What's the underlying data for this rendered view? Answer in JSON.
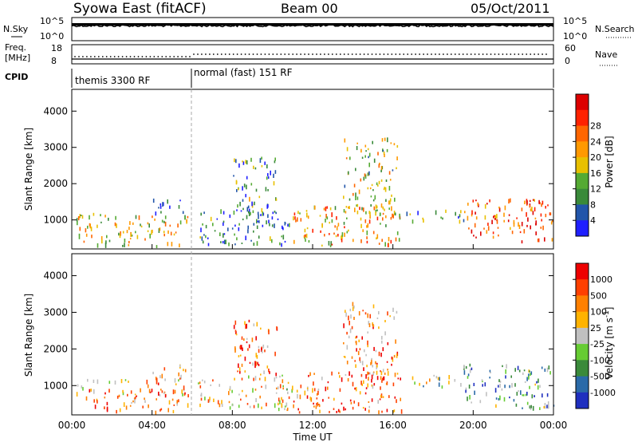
{
  "header": {
    "station": "Syowa East (fitACF)",
    "beam": "Beam 00",
    "date": "05/Oct/2011"
  },
  "noise_panel": {
    "left_label": "N.Sky",
    "right_label": "N.Search",
    "left_ticks": [
      "10^5",
      "10^0"
    ],
    "right_ticks": [
      "10^5",
      "10^0"
    ]
  },
  "freq_panel": {
    "left_label": "Freq.",
    "left_unit": "[MHz]",
    "left_ticks": [
      "18",
      "8"
    ],
    "right_label": "Nave",
    "right_ticks": [
      "60",
      "0"
    ]
  },
  "cpid_panel": {
    "label": "CPID",
    "modes": [
      "themis 3300 RF",
      "normal (fast) 151 RF"
    ]
  },
  "chart_data": [
    {
      "type": "heatmap",
      "ylabel": "Slant Range [km]",
      "xlabel": "",
      "yticks": [
        "1000",
        "2000",
        "3000",
        "4000"
      ],
      "xticks": [],
      "ylim": [
        200,
        4600
      ],
      "colorbar": {
        "label": "Power [dB]",
        "ticks": [
          "4",
          "8",
          "12",
          "16",
          "20",
          "24",
          "28"
        ],
        "colors": [
          "#1f1fff",
          "#2255aa",
          "#3a8a3a",
          "#55aa33",
          "#e8c000",
          "#ff9900",
          "#ff6600",
          "#ff2200",
          "#dd0000"
        ]
      },
      "scatter_bands": [
        {
          "t0": 0.2,
          "t1": 5.8,
          "r0": 300,
          "r1": 1200,
          "level": 0.5
        },
        {
          "t0": 4.0,
          "t1": 5.8,
          "r0": 1200,
          "r1": 1600,
          "level": 0.1
        },
        {
          "t0": 6.2,
          "t1": 11.0,
          "r0": 350,
          "r1": 1300,
          "level": 0.2
        },
        {
          "t0": 8.0,
          "t1": 10.2,
          "r0": 1200,
          "r1": 2800,
          "level": 0.3
        },
        {
          "t0": 11.0,
          "t1": 16.5,
          "r0": 300,
          "r1": 1400,
          "level": 0.6
        },
        {
          "t0": 13.5,
          "t1": 16.2,
          "r0": 1200,
          "r1": 3300,
          "level": 0.45
        },
        {
          "t0": 16.5,
          "t1": 19.5,
          "r0": 1000,
          "r1": 1300,
          "level": 0.3
        },
        {
          "t0": 19.5,
          "t1": 24.0,
          "r0": 400,
          "r1": 1600,
          "level": 0.8
        }
      ]
    },
    {
      "type": "heatmap",
      "ylabel": "Slant Range [km]",
      "xlabel": "Time UT",
      "yticks": [
        "1000",
        "2000",
        "3000",
        "4000"
      ],
      "xticks": [
        "00:00",
        "04:00",
        "08:00",
        "12:00",
        "16:00",
        "20:00",
        "00:00"
      ],
      "ylim": [
        200,
        4600
      ],
      "colorbar": {
        "label": "Velocity [m s^-1]",
        "ticks": [
          "1000",
          "500",
          "100",
          "25",
          "-25",
          "-100",
          "-500",
          "-1000"
        ],
        "colors": [
          "#1f2fbf",
          "#2a6aa8",
          "#3a8a3a",
          "#66cc33",
          "#c0c0c0",
          "#ffb300",
          "#ff8000",
          "#ff4000",
          "#ee0000"
        ]
      },
      "scatter_bands": [
        {
          "t0": 0.2,
          "t1": 5.8,
          "r0": 300,
          "r1": 1200,
          "level": 0.7
        },
        {
          "t0": 4.0,
          "t1": 5.8,
          "r0": 1200,
          "r1": 1600,
          "level": 0.65
        },
        {
          "t0": 6.2,
          "t1": 11.0,
          "r0": 350,
          "r1": 1300,
          "level": 0.6
        },
        {
          "t0": 8.0,
          "t1": 10.2,
          "r0": 1200,
          "r1": 2800,
          "level": 0.75
        },
        {
          "t0": 11.0,
          "t1": 16.5,
          "r0": 300,
          "r1": 1400,
          "level": 0.78
        },
        {
          "t0": 13.5,
          "t1": 16.2,
          "r0": 1200,
          "r1": 3300,
          "level": 0.72
        },
        {
          "t0": 16.5,
          "t1": 19.5,
          "r0": 1000,
          "r1": 1300,
          "level": 0.45
        },
        {
          "t0": 19.5,
          "t1": 24.0,
          "r0": 400,
          "r1": 1600,
          "level": 0.3
        }
      ]
    }
  ]
}
